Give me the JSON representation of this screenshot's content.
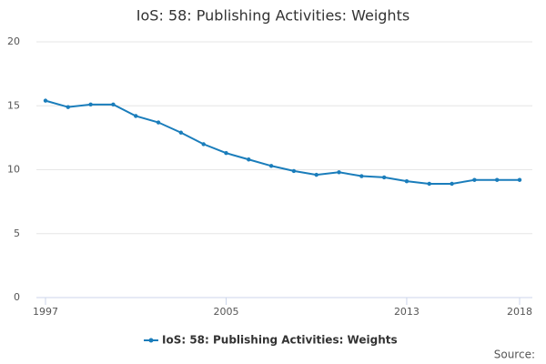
{
  "chart_data": {
    "type": "line",
    "title": "IoS: 58: Publishing Activities: Weights",
    "x": [
      1997,
      1998,
      1999,
      2000,
      2001,
      2002,
      2003,
      2004,
      2005,
      2006,
      2007,
      2008,
      2009,
      2010,
      2011,
      2012,
      2013,
      2014,
      2015,
      2016,
      2017,
      2018
    ],
    "series": [
      {
        "name": "IoS: 58: Publishing Activities: Weights",
        "color": "#1a7dbb",
        "values": [
          15.4,
          14.9,
          15.1,
          15.1,
          14.2,
          13.7,
          12.9,
          12.0,
          11.3,
          10.8,
          10.3,
          9.9,
          9.6,
          9.8,
          9.5,
          9.4,
          9.1,
          8.9,
          8.9,
          9.2,
          9.2,
          9.2
        ]
      }
    ],
    "xlim": [
      1997,
      2018
    ],
    "xticks": [
      1997,
      2005,
      2013,
      2018
    ],
    "ylim": [
      0,
      20
    ],
    "yticks": [
      0,
      5,
      10,
      15,
      20
    ],
    "grid": true,
    "legend": "bottom",
    "source": "Source:"
  }
}
